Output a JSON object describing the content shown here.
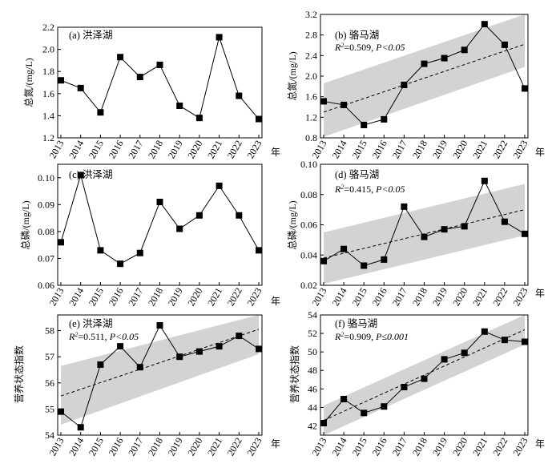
{
  "figure": {
    "year_unit": "年"
  },
  "chart_data": [
    {
      "id": "a",
      "type": "line",
      "title": "(a) 洪泽湖",
      "ylabel": "总氮/(mg/L)",
      "x": [
        "2013",
        "2014",
        "2015",
        "2016",
        "2017",
        "2018",
        "2019",
        "2020",
        "2021",
        "2022",
        "2023"
      ],
      "ylim": [
        1.2,
        2.2
      ],
      "yticks": [
        "1.2",
        "1.4",
        "1.6",
        "1.8",
        "2.0",
        "2.2"
      ],
      "yticks_values": [
        1.2,
        1.4,
        1.6,
        1.8,
        2.0,
        2.2
      ],
      "series": [
        {
          "values": [
            1.72,
            1.65,
            1.43,
            1.93,
            1.75,
            1.86,
            1.49,
            1.38,
            2.11,
            1.58,
            1.37
          ]
        }
      ],
      "stats": null,
      "trend": null
    },
    {
      "id": "b",
      "type": "line",
      "title": "(b) 骆马湖",
      "ylabel": "总氮/(mg/L)",
      "x": [
        "2013",
        "2014",
        "2015",
        "2016",
        "2017",
        "2018",
        "2019",
        "2020",
        "2021",
        "2022",
        "2023"
      ],
      "ylim": [
        0.8,
        3.2
      ],
      "yticks": [
        "0.8",
        "1.2",
        "1.6",
        "2.0",
        "2.4",
        "2.8",
        "3.2"
      ],
      "yticks_values": [
        0.8,
        1.2,
        1.6,
        2.0,
        2.4,
        2.8,
        3.2
      ],
      "series": [
        {
          "values": [
            1.51,
            1.44,
            1.05,
            1.16,
            1.83,
            2.24,
            2.35,
            2.51,
            3.01,
            2.61,
            1.76
          ]
        }
      ],
      "stats": {
        "r2": "0.509",
        "p": "P<0.05"
      },
      "trend": {
        "start": 1.3,
        "end": 2.62,
        "band_upper": [
          1.86,
          3.2
        ],
        "band_lower": [
          0.82,
          2.18
        ]
      }
    },
    {
      "id": "c",
      "type": "line",
      "title": "(c) 洪泽湖",
      "ylabel": "总磷/(mg/L)",
      "x": [
        "2013",
        "2014",
        "2015",
        "2016",
        "2017",
        "2018",
        "2019",
        "2020",
        "2021",
        "2022",
        "2023"
      ],
      "ylim": [
        0.06,
        0.105
      ],
      "yticks": [
        "0.06",
        "0.07",
        "0.08",
        "0.09",
        "0.10"
      ],
      "yticks_values": [
        0.06,
        0.07,
        0.08,
        0.09,
        0.1
      ],
      "series": [
        {
          "values": [
            0.076,
            0.101,
            0.073,
            0.068,
            0.072,
            0.091,
            0.081,
            0.086,
            0.097,
            0.086,
            0.073
          ]
        }
      ],
      "stats": null,
      "trend": null
    },
    {
      "id": "d",
      "type": "line",
      "title": "(d) 骆马湖",
      "ylabel": "总磷/(mg/L)",
      "x": [
        "2013",
        "2014",
        "2015",
        "2016",
        "2017",
        "2018",
        "2019",
        "2020",
        "2021",
        "2022",
        "2023"
      ],
      "ylim": [
        0.02,
        0.1
      ],
      "yticks": [
        "0.02",
        "0.04",
        "0.06",
        "0.08",
        "0.10"
      ],
      "yticks_values": [
        0.02,
        0.04,
        0.06,
        0.08,
        0.1
      ],
      "series": [
        {
          "values": [
            0.036,
            0.044,
            0.033,
            0.037,
            0.072,
            0.052,
            0.057,
            0.059,
            0.089,
            0.062,
            0.054
          ]
        }
      ],
      "stats": {
        "r2": "0.415",
        "p": "P<0.05"
      },
      "trend": {
        "start": 0.038,
        "end": 0.07,
        "band_upper": [
          0.055,
          0.087
        ],
        "band_lower": [
          0.021,
          0.053
        ]
      }
    },
    {
      "id": "e",
      "type": "line",
      "title": "(e) 洪泽湖",
      "ylabel": "营养状态指数",
      "x": [
        "2013",
        "2014",
        "2015",
        "2016",
        "2017",
        "2018",
        "2019",
        "2020",
        "2021",
        "2022",
        "2023"
      ],
      "ylim": [
        54,
        58.6
      ],
      "yticks": [
        "54",
        "55",
        "56",
        "57",
        "58"
      ],
      "yticks_values": [
        54,
        55,
        56,
        57,
        58
      ],
      "series": [
        {
          "values": [
            54.9,
            54.3,
            56.7,
            57.4,
            56.6,
            58.2,
            57.0,
            57.2,
            57.4,
            57.8,
            57.3
          ]
        }
      ],
      "stats": {
        "r2": "0.511",
        "p": "P<0.05"
      },
      "trend": {
        "start": 55.5,
        "end": 58.05,
        "band_upper": [
          56.65,
          59.0
        ],
        "band_lower": [
          54.4,
          57.1
        ]
      }
    },
    {
      "id": "f",
      "type": "line",
      "title": "(f) 骆马湖",
      "ylabel": "营养状态指数",
      "x": [
        "2013",
        "2014",
        "2015",
        "2016",
        "2017",
        "2018",
        "2019",
        "2020",
        "2021",
        "2022",
        "2023"
      ],
      "ylim": [
        41,
        54
      ],
      "yticks": [
        "42",
        "44",
        "46",
        "48",
        "50",
        "52",
        "54"
      ],
      "yticks_values": [
        42,
        44,
        46,
        48,
        50,
        52,
        54
      ],
      "series": [
        {
          "values": [
            42.3,
            44.9,
            43.4,
            44.1,
            46.2,
            47.1,
            49.2,
            49.9,
            52.2,
            51.3,
            51.1
          ]
        }
      ],
      "stats": {
        "r2": "0.909",
        "p": "P≤0.001"
      },
      "trend": {
        "start": 42.6,
        "end": 52.4,
        "band_upper": [
          44.2,
          54.0
        ],
        "band_lower": [
          41.0,
          50.8
        ]
      }
    }
  ]
}
